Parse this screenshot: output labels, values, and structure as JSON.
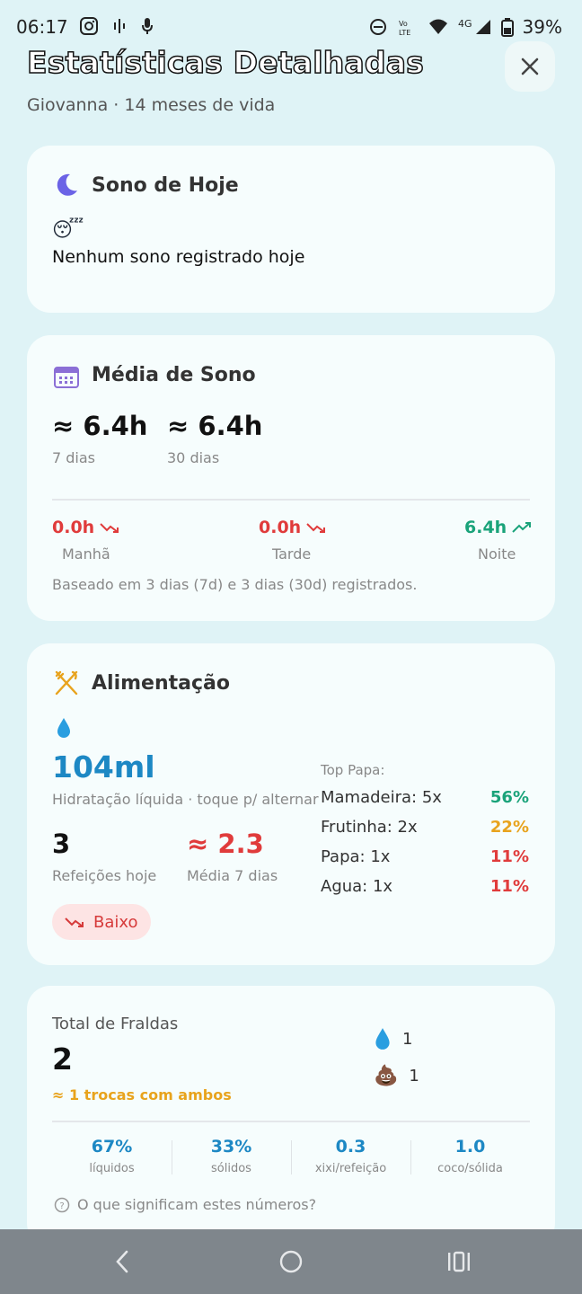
{
  "status_bar": {
    "time": "06:17",
    "battery": "39%",
    "network": "4G"
  },
  "header": {
    "title": "Estatísticas Detalhadas",
    "subtitle": "Giovanna · 14 meses de vida"
  },
  "sleep_today": {
    "title": "Sono de Hoje",
    "emoji": "😴",
    "empty_message": "Nenhum sono registrado hoje"
  },
  "sleep_average": {
    "title": "Média de Sono",
    "avg_7d_value": "≈ 6.4h",
    "avg_7d_label": "7 dias",
    "avg_30d_value": "≈ 6.4h",
    "avg_30d_label": "30 dias",
    "periods": [
      {
        "value": "0.0h",
        "label": "Manhã",
        "trend": "down",
        "color": "#e03b3b"
      },
      {
        "value": "0.0h",
        "label": "Tarde",
        "trend": "down",
        "color": "#e03b3b"
      },
      {
        "value": "6.4h",
        "label": "Noite",
        "trend": "up",
        "color": "#1aa37a"
      }
    ],
    "note": "Baseado em 3 dias (7d) e 3 dias (30d) registrados."
  },
  "feeding": {
    "title": "Alimentação",
    "hydration_value": "104ml",
    "hydration_label": "Hidratação líquida · toque p/ alternar",
    "meals_value": "3",
    "meals_label": "Refeições hoje",
    "avg_value": "≈ 2.3",
    "avg_label": "Média 7 dias",
    "status_badge": "Baixo",
    "top_title": "Top Papa:",
    "top_items": [
      {
        "name": "Mamadeira: 5x",
        "pct": "56%",
        "color": "#1aa37a"
      },
      {
        "name": "Frutinha: 2x",
        "pct": "22%",
        "color": "#e8a31d"
      },
      {
        "name": "Papa: 1x",
        "pct": "11%",
        "color": "#e03b3b"
      },
      {
        "name": "Agua: 1x",
        "pct": "11%",
        "color": "#e03b3b"
      }
    ]
  },
  "diapers": {
    "total_label": "Total de Fraldas",
    "total_value": "2",
    "both_note": "≈ 1 trocas com ambos",
    "pee_count": "1",
    "poop_count": "1",
    "poop_emoji": "💩",
    "stats": [
      {
        "value": "67%",
        "label": "líquidos"
      },
      {
        "value": "33%",
        "label": "sólidos"
      },
      {
        "value": "0.3",
        "label": "xixi/refeição"
      },
      {
        "value": "1.0",
        "label": "coco/sólida"
      }
    ],
    "help_text": "O que significam estes números?"
  },
  "colors": {
    "background": "#dff3f6",
    "card": "#f6fdfd",
    "accent_blue": "#1d88c4",
    "red": "#e03b3b",
    "green": "#1aa37a",
    "orange": "#e8a31d"
  }
}
